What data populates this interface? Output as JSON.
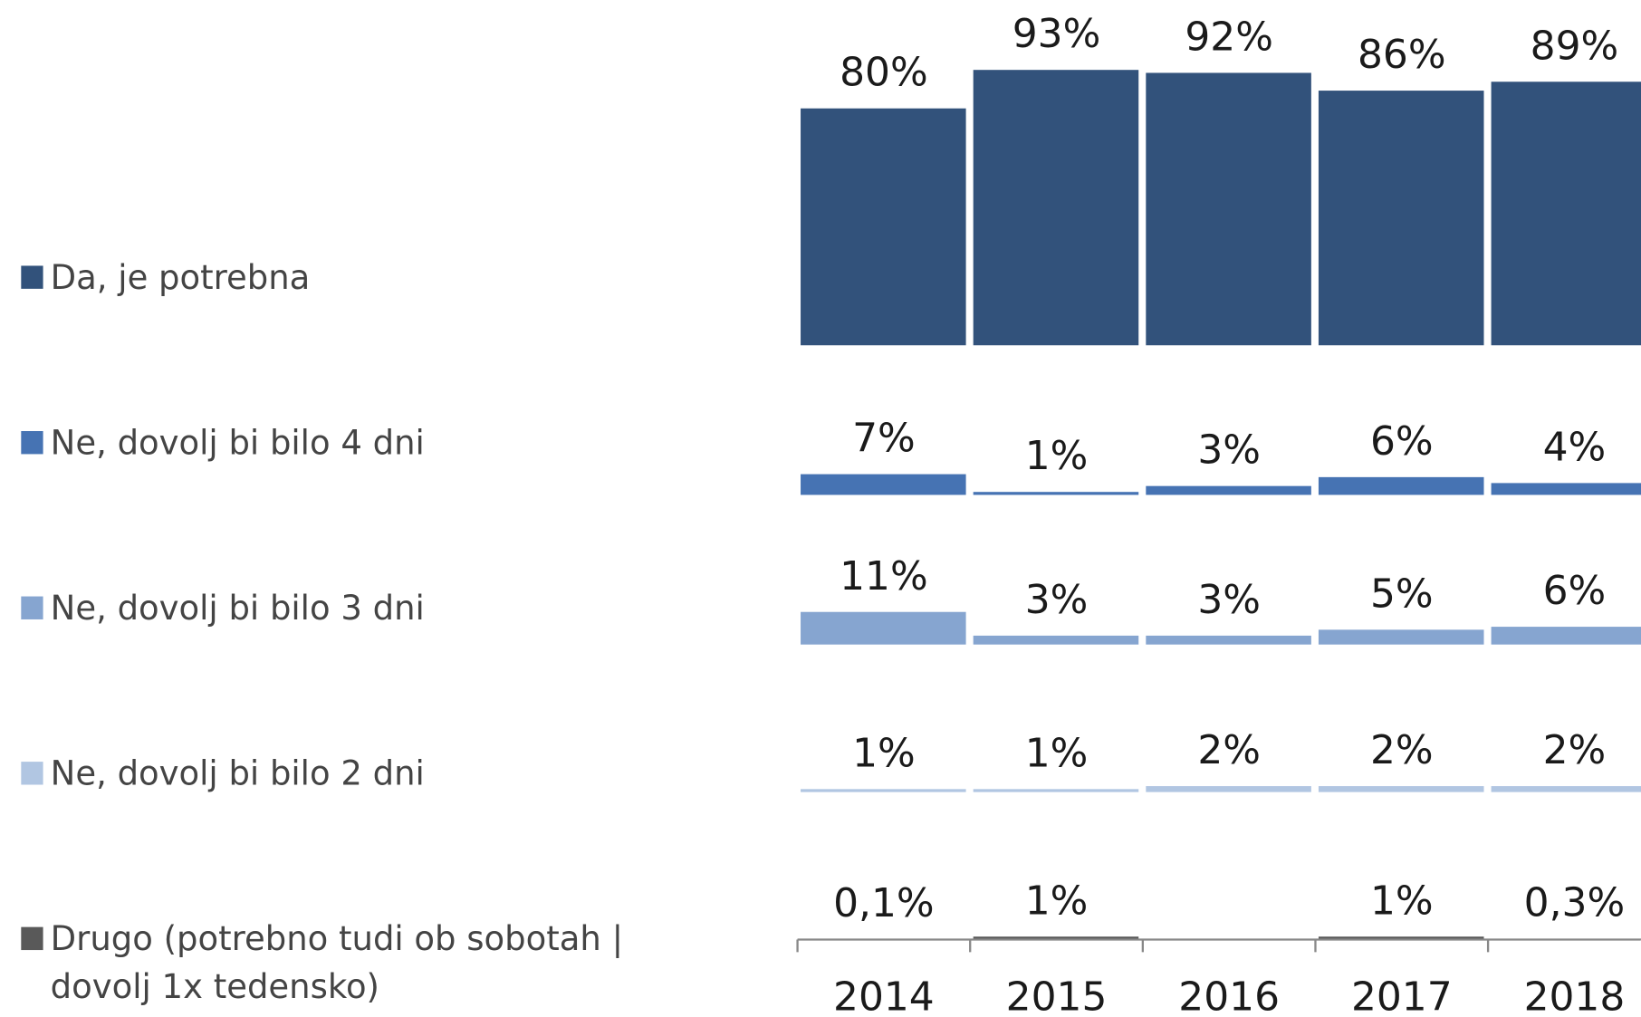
{
  "chart_data": {
    "type": "bar",
    "categories": [
      "2014",
      "2015",
      "2016",
      "2017",
      "2018"
    ],
    "ylim": [
      0,
      100
    ],
    "series": [
      {
        "name": "Da, je potrebna",
        "color": "#32527b",
        "values": [
          80,
          93,
          92,
          86,
          89
        ],
        "value_labels": [
          "80%",
          "93%",
          "92%",
          "86%",
          "89%"
        ]
      },
      {
        "name": "Ne, dovolj bi bilo 4 dni",
        "color": "#4673b3",
        "values": [
          7,
          1,
          3,
          6,
          4
        ],
        "value_labels": [
          "7%",
          "1%",
          "3%",
          "6%",
          "4%"
        ]
      },
      {
        "name": "Ne, dovolj bi bilo 3 dni",
        "color": "#86a5d0",
        "values": [
          11,
          3,
          3,
          5,
          6
        ],
        "value_labels": [
          "11%",
          "3%",
          "3%",
          "5%",
          "6%"
        ]
      },
      {
        "name": "Ne, dovolj bi bilo 2 dni",
        "color": "#b1c6e2",
        "values": [
          1,
          1,
          2,
          2,
          2
        ],
        "value_labels": [
          "1%",
          "1%",
          "2%",
          "2%",
          "2%"
        ]
      },
      {
        "name": "Drugo (potrebno tudi ob sobotah | dovolj 1x tedensko)",
        "color": "#595959",
        "values": [
          0.1,
          1,
          null,
          1,
          0.3
        ],
        "value_labels": [
          "0,1%",
          "1%",
          null,
          "1%",
          "0,3%"
        ]
      }
    ]
  }
}
